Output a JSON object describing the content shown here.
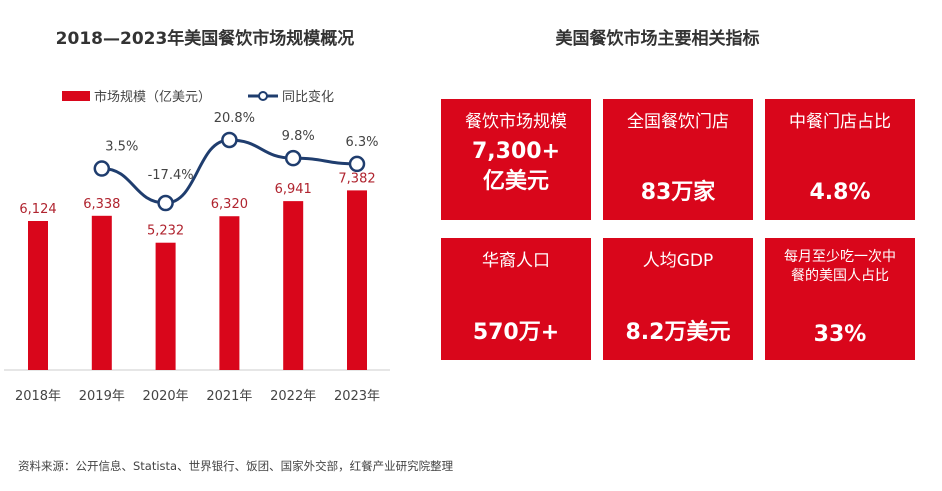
{
  "left_title": "2018—2023年美国餐饮市场规模概况",
  "right_title": "美国餐饮市场主要相关指标",
  "chart_data": {
    "type": "bar+line",
    "title": "2018—2023年美国餐饮市场规模概况",
    "categories": [
      "2018年",
      "2019年",
      "2020年",
      "2021年",
      "2022年",
      "2023年"
    ],
    "series": [
      {
        "name": "市场规模（亿美元）",
        "type": "bar",
        "color": "#d9061b",
        "values": [
          6124,
          6338,
          5232,
          6320,
          6941,
          7382
        ],
        "labels": [
          "6,124",
          "6,338",
          "5,232",
          "6,320",
          "6,941",
          "7,382"
        ]
      },
      {
        "name": "同比变化",
        "type": "line",
        "color": "#1f3d6e",
        "values": [
          null,
          3.5,
          -17.4,
          20.8,
          9.8,
          6.3
        ],
        "labels": [
          "",
          "3.5%",
          "-17.4%",
          "20.8%",
          "9.8%",
          "6.3%"
        ]
      }
    ],
    "legend": "top",
    "grid": false
  },
  "cards": [
    {
      "label": "餐饮市场规模",
      "value": "7,300+\n亿美元"
    },
    {
      "label": "全国餐饮门店",
      "value": "83万家"
    },
    {
      "label": "中餐门店占比",
      "value": "4.8%"
    },
    {
      "label": "华裔人口",
      "value": "570万+"
    },
    {
      "label": "人均GDP",
      "value": "8.2万美元"
    },
    {
      "label": "每月至少吃一次中餐的美国人占比",
      "value": "33%"
    }
  ],
  "footnote": "资料来源：公开信息、Statista、世界银行、饭团、国家外交部，红餐产业研究院整理",
  "watermark": "红餐产业研究院"
}
